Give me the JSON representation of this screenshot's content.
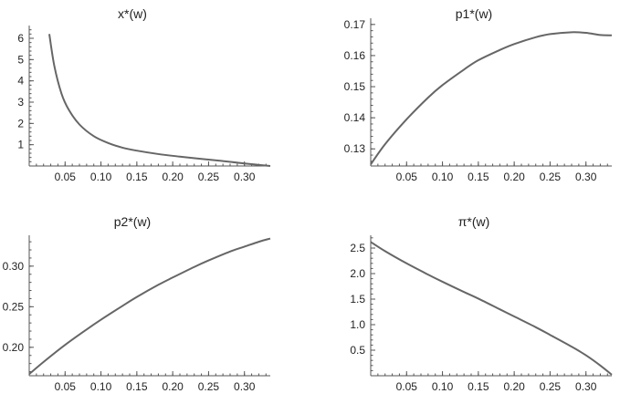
{
  "chart_data": [
    {
      "type": "line",
      "title": "x*(w)",
      "xlabel": "",
      "ylabel": "",
      "xlim": [
        0.0,
        0.336
      ],
      "ylim": [
        0.0,
        6.6
      ],
      "xticks": [
        0.05,
        0.1,
        0.15,
        0.2,
        0.25,
        0.3
      ],
      "xtick_labels": [
        "0.05",
        "0.10",
        "0.15",
        "0.20",
        "0.25",
        "0.30"
      ],
      "yticks": [
        1,
        2,
        3,
        4,
        5,
        6
      ],
      "ytick_labels": [
        "1",
        "2",
        "3",
        "4",
        "5",
        "6"
      ],
      "x": [
        0.028,
        0.035,
        0.045,
        0.055,
        0.07,
        0.09,
        0.11,
        0.13,
        0.15,
        0.18,
        0.21,
        0.24,
        0.27,
        0.3,
        0.32,
        0.336
      ],
      "y": [
        6.2,
        4.7,
        3.4,
        2.65,
        1.95,
        1.4,
        1.08,
        0.86,
        0.72,
        0.56,
        0.44,
        0.33,
        0.23,
        0.12,
        0.05,
        0.0
      ]
    },
    {
      "type": "line",
      "title": "p1*(w)",
      "xlabel": "",
      "ylabel": "",
      "xlim": [
        0.0,
        0.336
      ],
      "ylim": [
        0.1245,
        0.172
      ],
      "xticks": [
        0.05,
        0.1,
        0.15,
        0.2,
        0.25,
        0.3
      ],
      "xtick_labels": [
        "0.05",
        "0.10",
        "0.15",
        "0.20",
        "0.25",
        "0.30"
      ],
      "yticks": [
        0.13,
        0.14,
        0.15,
        0.16,
        0.17
      ],
      "ytick_labels": [
        "0.13",
        "0.14",
        "0.15",
        "0.16",
        "0.17"
      ],
      "x": [
        0.0,
        0.02,
        0.05,
        0.08,
        0.1,
        0.13,
        0.15,
        0.18,
        0.2,
        0.23,
        0.25,
        0.28,
        0.3,
        0.32,
        0.336
      ],
      "y": [
        0.125,
        0.1315,
        0.1395,
        0.1465,
        0.1505,
        0.1555,
        0.1585,
        0.1618,
        0.1637,
        0.1659,
        0.1669,
        0.1675,
        0.1673,
        0.1666,
        0.1665
      ]
    },
    {
      "type": "line",
      "title": "p2*(w)",
      "xlabel": "",
      "ylabel": "",
      "xlim": [
        0.0,
        0.336
      ],
      "ylim": [
        0.165,
        0.338
      ],
      "xticks": [
        0.05,
        0.1,
        0.15,
        0.2,
        0.25,
        0.3
      ],
      "xtick_labels": [
        "0.05",
        "0.10",
        "0.15",
        "0.20",
        "0.25",
        "0.30"
      ],
      "yticks": [
        0.2,
        0.25,
        0.3
      ],
      "ytick_labels": [
        "0.20",
        "0.25",
        "0.30"
      ],
      "x": [
        0.0,
        0.02,
        0.05,
        0.08,
        0.1,
        0.13,
        0.15,
        0.18,
        0.2,
        0.23,
        0.25,
        0.28,
        0.3,
        0.32,
        0.336
      ],
      "y": [
        0.167,
        0.182,
        0.203,
        0.222,
        0.234,
        0.251,
        0.262,
        0.277,
        0.286,
        0.299,
        0.307,
        0.318,
        0.324,
        0.33,
        0.334
      ]
    },
    {
      "type": "line",
      "title": "π*(w)",
      "xlabel": "",
      "ylabel": "",
      "xlim": [
        0.0,
        0.336
      ],
      "ylim": [
        0.0,
        2.75
      ],
      "xticks": [
        0.05,
        0.1,
        0.15,
        0.2,
        0.25,
        0.3
      ],
      "xtick_labels": [
        "0.05",
        "0.10",
        "0.15",
        "0.20",
        "0.25",
        "0.30"
      ],
      "yticks": [
        0.5,
        1.0,
        1.5,
        2.0,
        2.5
      ],
      "ytick_labels": [
        "0.5",
        "1.0",
        "1.5",
        "2.0",
        "2.5"
      ],
      "x": [
        0.0,
        0.02,
        0.05,
        0.08,
        0.1,
        0.13,
        0.15,
        0.18,
        0.2,
        0.23,
        0.25,
        0.28,
        0.3,
        0.32,
        0.336
      ],
      "y": [
        2.62,
        2.44,
        2.2,
        1.98,
        1.84,
        1.64,
        1.51,
        1.3,
        1.16,
        0.95,
        0.8,
        0.57,
        0.4,
        0.2,
        0.02
      ]
    }
  ]
}
